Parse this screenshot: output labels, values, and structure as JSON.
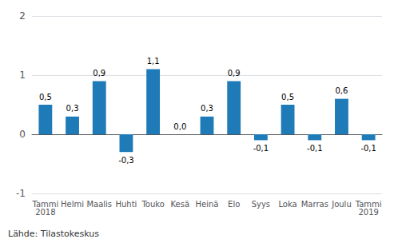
{
  "chart_data": {
    "type": "bar",
    "categories": [
      "Tammi\n2018",
      "Helmi",
      "Maalis",
      "Huhti",
      "Touko",
      "Kesä",
      "Heinä",
      "Elo",
      "Syys",
      "Loka",
      "Marras",
      "Joulu",
      "Tammi\n2019"
    ],
    "values": [
      0.5,
      0.3,
      0.9,
      -0.3,
      1.1,
      0.0,
      0.3,
      0.9,
      -0.1,
      0.5,
      -0.1,
      0.6,
      -0.1
    ],
    "value_labels": [
      "0,5",
      "0,3",
      "0,9",
      "-0,3",
      "1,1",
      "0,0",
      "0,3",
      "0,9",
      "-0,1",
      "0,5",
      "-0,1",
      "0,6",
      "-0,1"
    ],
    "data_labels": true,
    "color": "#1f7bb8",
    "ylim": [
      -1.0,
      2.0
    ],
    "yticks": [
      -1,
      0,
      1,
      2
    ],
    "grid": true,
    "annotations": [
      "Lähde: Tilastokeskus"
    ]
  }
}
